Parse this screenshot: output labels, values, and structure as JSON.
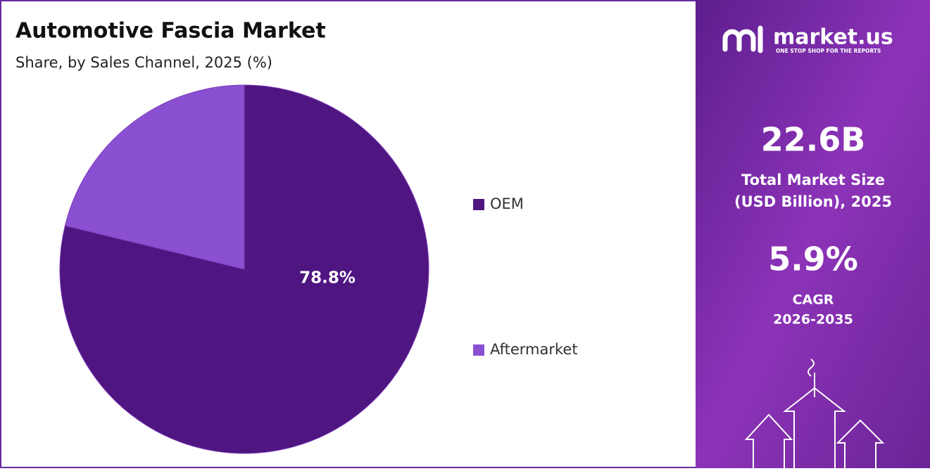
{
  "chart_data": {
    "type": "pie",
    "title": "Automotive Fascia Market",
    "subtitle": "Share, by Sales Channel, 2025 (%)",
    "categories": [
      "OEM",
      "Aftermarket"
    ],
    "values": [
      78.8,
      21.2
    ],
    "value_labels": [
      "78.8%",
      null
    ],
    "colors": [
      "#4f1580",
      "#8b50d1"
    ],
    "legend": "right"
  },
  "panel": {
    "brand": "market.us",
    "tagline": "ONE STOP SHOP FOR THE REPORTS",
    "market_size": "22.6B",
    "size_label": [
      "Total Market Size",
      "(USD Billion), 2025"
    ],
    "cagr": "5.9%",
    "cagr_label": [
      "CAGR",
      "2026-2035"
    ]
  }
}
